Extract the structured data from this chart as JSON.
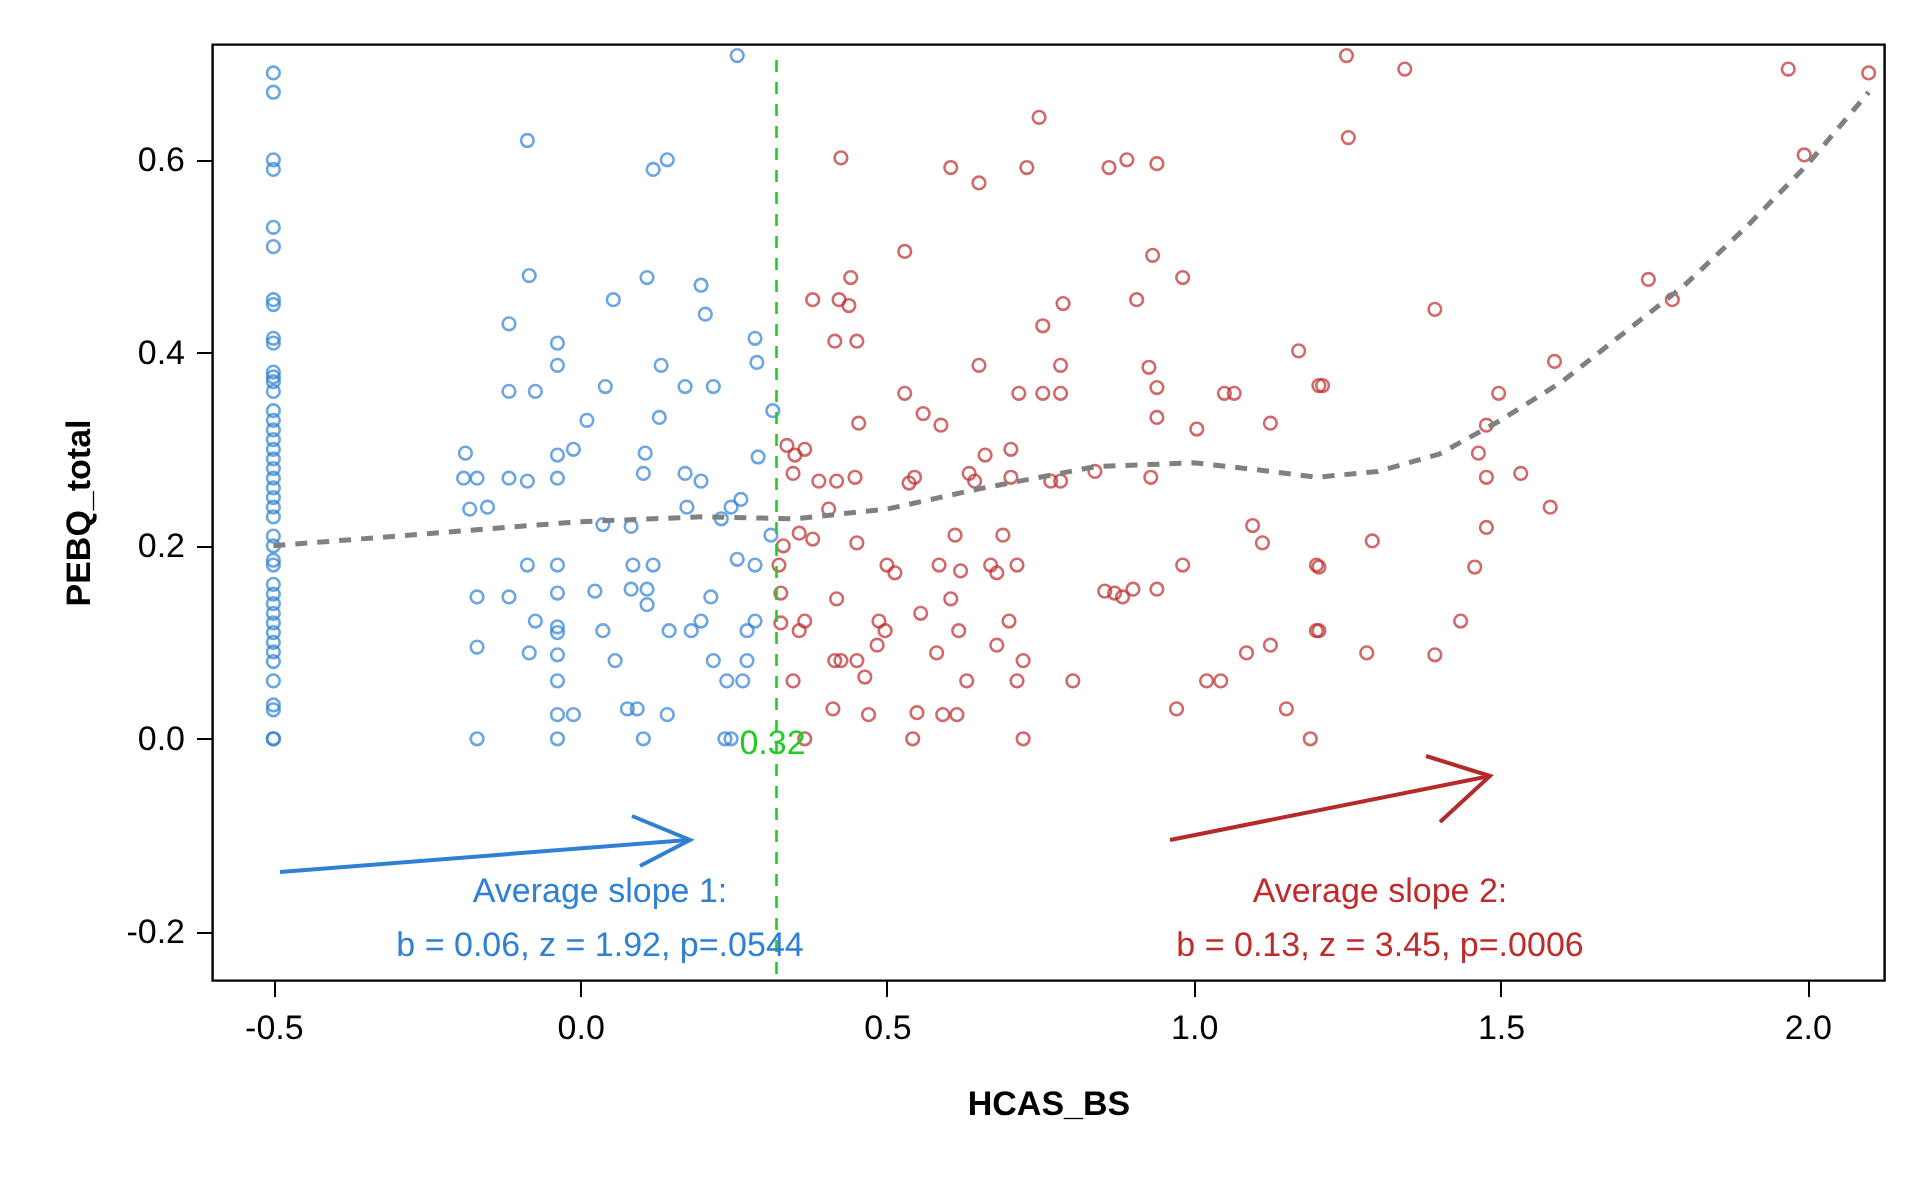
{
  "chart_data": {
    "type": "scatter",
    "xlabel": "HCAS_BS",
    "ylabel": "PEBQ_total",
    "xlim": [
      -0.6,
      2.125
    ],
    "ylim": [
      -0.25,
      0.72
    ],
    "xticks": [
      -0.5,
      {
        "value": 0,
        "label": "0.0"
      },
      0.5,
      {
        "value": 1,
        "label": "1.0"
      },
      1.5,
      {
        "value": 2,
        "label": "2.0"
      }
    ],
    "yticks": [
      -0.2,
      {
        "value": 0,
        "label": "0.0"
      },
      0.2,
      0.4,
      0.6
    ],
    "grid": false,
    "series": [
      {
        "marker": "circle",
        "color": "#2f80d3",
        "x": [
          -0.5,
          -0.5,
          -0.5,
          -0.5,
          -0.5,
          -0.5,
          -0.5,
          -0.5,
          -0.5,
          -0.5,
          -0.5,
          -0.5,
          -0.5,
          -0.5,
          -0.5,
          -0.5,
          -0.5,
          -0.5,
          -0.5,
          -0.5,
          -0.5,
          -0.5,
          -0.5,
          -0.5,
          -0.5,
          -0.5,
          -0.5,
          -0.5,
          -0.5,
          -0.5,
          -0.5,
          -0.5,
          -0.5,
          -0.5,
          -0.5,
          -0.5,
          -0.5,
          -0.5,
          -0.5,
          -0.5,
          -0.5,
          -0.5,
          -0.5,
          -0.5,
          0.256,
          -0.086,
          0.119,
          0.142,
          -0.083,
          0.109,
          0.197,
          0.054,
          -0.116,
          0.204,
          -0.037,
          0.285,
          -0.037,
          0.132,
          0.288,
          -0.116,
          -0.073,
          0.041,
          0.171,
          0.217,
          0.011,
          0.129,
          0.314,
          -0.187,
          -0.037,
          -0.011,
          0.106,
          0.29,
          -0.19,
          -0.168,
          -0.116,
          -0.086,
          -0.037,
          0.103,
          0.171,
          0.197,
          -0.18,
          -0.151,
          0.174,
          0.262,
          0.246,
          0.23,
          0.037,
          0.083,
          0.311,
          -0.086,
          -0.037,
          0.086,
          0.119,
          0.256,
          0.285,
          -0.168,
          -0.116,
          -0.037,
          0.024,
          0.083,
          0.109,
          0.109,
          0.213,
          -0.073,
          -0.037,
          -0.037,
          0.037,
          0.145,
          0.181,
          0.197,
          0.272,
          0.285,
          -0.168,
          -0.083,
          -0.037,
          0.057,
          0.217,
          0.272,
          -0.037,
          0.239,
          0.265,
          0.077,
          0.093,
          -0.037,
          -0.011,
          0.142,
          -0.168,
          -0.037,
          0.103,
          0.236,
          0.246
        ],
        "values": [
          0.69,
          0.67,
          0.6,
          0.59,
          0.53,
          0.51,
          0.455,
          0.45,
          0.415,
          0.41,
          0.38,
          0.375,
          0.37,
          0.36,
          0.34,
          0.33,
          0.32,
          0.31,
          0.3,
          0.29,
          0.28,
          0.27,
          0.26,
          0.25,
          0.24,
          0.23,
          0.21,
          0.2,
          0.185,
          0.18,
          0.16,
          0.15,
          0.14,
          0.13,
          0.12,
          0.11,
          0.1,
          0.09,
          0.08,
          0.06,
          0.035,
          0.03,
          0.0,
          0.0,
          0.708,
          0.62,
          0.59,
          0.6,
          0.48,
          0.478,
          0.47,
          0.455,
          0.43,
          0.44,
          0.41,
          0.415,
          0.387,
          0.387,
          0.39,
          0.36,
          0.36,
          0.365,
          0.365,
          0.365,
          0.33,
          0.333,
          0.34,
          0.296,
          0.294,
          0.3,
          0.296,
          0.292,
          0.27,
          0.27,
          0.27,
          0.267,
          0.27,
          0.275,
          0.275,
          0.267,
          0.238,
          0.24,
          0.24,
          0.248,
          0.24,
          0.228,
          0.222,
          0.22,
          0.211,
          0.18,
          0.18,
          0.18,
          0.18,
          0.186,
          0.18,
          0.147,
          0.147,
          0.151,
          0.153,
          0.155,
          0.155,
          0.139,
          0.147,
          0.122,
          0.116,
          0.11,
          0.112,
          0.112,
          0.112,
          0.122,
          0.112,
          0.122,
          0.095,
          0.089,
          0.087,
          0.081,
          0.081,
          0.081,
          0.06,
          0.06,
          0.06,
          0.031,
          0.031,
          0.025,
          0.025,
          0.025,
          0.0,
          0.0,
          0.0,
          0.0,
          0.0
        ]
      },
      {
        "marker": "circle",
        "color": "#bf2b2b",
        "x": [
          0.748,
          0.425,
          0.604,
          0.65,
          0.728,
          0.862,
          0.891,
          0.94,
          0.529,
          0.441,
          0.933,
          0.982,
          0.379,
          0.422,
          0.438,
          0.787,
          0.907,
          0.754,
          0.415,
          0.451,
          1.171,
          0.65,
          0.783,
          0.927,
          0.529,
          0.715,
          0.754,
          0.783,
          0.94,
          1.05,
          1.066,
          1.204,
          0.454,
          0.559,
          0.588,
          0.94,
          1.005,
          1.125,
          0.337,
          0.366,
          0.35,
          0.66,
          0.702,
          0.347,
          0.389,
          0.418,
          0.448,
          0.536,
          0.545,
          0.634,
          0.643,
          0.702,
          0.767,
          0.783,
          0.839,
          0.93,
          0.405,
          0.357,
          0.379,
          0.331,
          0.451,
          0.611,
          0.689,
          1.096,
          1.112,
          0.324,
          0.5,
          0.513,
          0.585,
          0.62,
          0.669,
          0.679,
          0.712,
          0.982,
          1.2,
          0.855,
          0.871,
          0.884,
          0.901,
          0.94,
          0.327,
          0.418,
          0.604,
          0.555,
          0.327,
          0.366,
          0.357,
          0.487,
          0.497,
          0.617,
          0.699,
          1.2,
          0.484,
          0.581,
          0.679,
          1.086,
          1.125,
          0.415,
          0.425,
          0.451,
          0.722,
          0.347,
          0.464,
          0.63,
          0.712,
          0.803,
          1.021,
          1.044,
          0.412,
          0.47,
          0.549,
          0.591,
          0.614,
          0.972,
          1.151,
          0.366,
          0.542,
          0.722,
          1.19,
          1.249,
          1.344,
          1.252,
          1.969,
          2.1,
          1.995,
          1.741,
          1.78,
          1.393,
          1.21,
          1.588,
          1.497,
          1.477,
          1.464,
          1.477,
          1.533,
          1.581,
          1.291,
          1.204,
          1.477,
          1.458,
          1.204,
          1.282,
          1.393,
          1.435
        ],
        "values": [
          0.644,
          0.602,
          0.592,
          0.576,
          0.592,
          0.592,
          0.6,
          0.596,
          0.505,
          0.478,
          0.501,
          0.478,
          0.455,
          0.455,
          0.449,
          0.451,
          0.455,
          0.428,
          0.412,
          0.412,
          0.402,
          0.387,
          0.387,
          0.385,
          0.358,
          0.358,
          0.358,
          0.358,
          0.364,
          0.358,
          0.358,
          0.366,
          0.327,
          0.337,
          0.325,
          0.333,
          0.321,
          0.327,
          0.304,
          0.3,
          0.294,
          0.294,
          0.3,
          0.275,
          0.267,
          0.267,
          0.271,
          0.265,
          0.271,
          0.275,
          0.267,
          0.271,
          0.267,
          0.267,
          0.277,
          0.271,
          0.238,
          0.213,
          0.207,
          0.2,
          0.203,
          0.211,
          0.211,
          0.221,
          0.203,
          0.18,
          0.18,
          0.172,
          0.18,
          0.174,
          0.18,
          0.172,
          0.18,
          0.18,
          0.18,
          0.153,
          0.151,
          0.147,
          0.155,
          0.155,
          0.151,
          0.145,
          0.145,
          0.13,
          0.12,
          0.122,
          0.112,
          0.122,
          0.112,
          0.112,
          0.122,
          0.112,
          0.097,
          0.089,
          0.097,
          0.089,
          0.097,
          0.081,
          0.081,
          0.081,
          0.081,
          0.06,
          0.064,
          0.06,
          0.06,
          0.06,
          0.06,
          0.06,
          0.031,
          0.025,
          0.027,
          0.025,
          0.025,
          0.031,
          0.031,
          0.0,
          0.0,
          0.0,
          0.0,
          0.708,
          0.694,
          0.623,
          0.694,
          0.69,
          0.605,
          0.476,
          0.455,
          0.445,
          0.366,
          0.391,
          0.358,
          0.325,
          0.296,
          0.271,
          0.275,
          0.24,
          0.205,
          0.178,
          0.219,
          0.178,
          0.112,
          0.089,
          0.087,
          0.122
        ]
      },
      {
        "type": "line",
        "color": "#808080",
        "line_style": "dashed",
        "x": [
          -0.5,
          -0.2,
          0.0,
          0.2,
          0.35,
          0.5,
          0.65,
          0.84,
          1.0,
          1.1,
          1.2,
          1.3,
          1.4,
          1.5,
          1.6,
          1.7,
          1.8,
          1.9,
          2.0,
          2.1
        ],
        "values": [
          0.2,
          0.215,
          0.225,
          0.23,
          0.228,
          0.238,
          0.259,
          0.282,
          0.286,
          0.279,
          0.271,
          0.277,
          0.295,
          0.33,
          0.37,
          0.42,
          0.47,
          0.53,
          0.595,
          0.67
        ]
      }
    ],
    "ref_lines": [
      {
        "axis": "x",
        "value": 0.32,
        "label": "0.32",
        "color": "#22cc22",
        "line_style": "dashed"
      }
    ],
    "annotations": [
      "Average slope 1:\nb = 0.06, z = 1.92, p=.0544",
      "Average slope 2:\nb = 0.13, z = 3.45, p=.0006"
    ]
  }
}
